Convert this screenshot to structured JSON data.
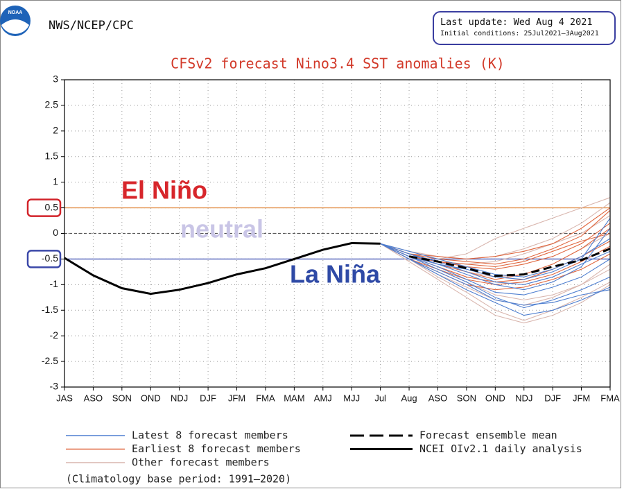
{
  "header": {
    "logo_text": "NOAA",
    "agency": "NWS/NCEP/CPC",
    "last_update": "Last update: Wed Aug 4 2021",
    "initial_conditions": "Initial conditions: 25Jul2021–3Aug2021"
  },
  "chart_data": {
    "type": "line",
    "title": "CFSv2 forecast Nino3.4 SST anomalies (K)",
    "categories": [
      "JAS",
      "ASO",
      "SON",
      "OND",
      "NDJ",
      "DJF",
      "JFM",
      "FMA",
      "MAM",
      "AMJ",
      "MJJ",
      "Jul",
      "Aug",
      "ASO",
      "SON",
      "OND",
      "NDJ",
      "DJF",
      "JFM",
      "FMA"
    ],
    "ylim": [
      -3,
      3
    ],
    "yticks": [
      -3,
      -2.5,
      -2,
      -1.5,
      -1,
      -0.5,
      0,
      0.5,
      1,
      1.5,
      2,
      2.5,
      3
    ],
    "grid": true,
    "thresholds": [
      {
        "value": 0.5,
        "color": "#e59a5b",
        "box": "#d2232a"
      },
      {
        "value": 0,
        "color": "#555555",
        "dash": true
      },
      {
        "value": -0.5,
        "color": "#4b5cb8",
        "box": "#3a47a8"
      }
    ],
    "annotations": [
      {
        "text": "El Niño",
        "color": "#d7262b"
      },
      {
        "text": "neutral",
        "color": "#c9c5e6"
      },
      {
        "text": "La Niña",
        "color": "#2f4aa6"
      }
    ],
    "member_groups": [
      {
        "name": "Latest 8 forecast members",
        "color": "#4f7fd0",
        "members": [
          [
            null,
            null,
            null,
            null,
            null,
            null,
            null,
            null,
            null,
            null,
            null,
            -0.2,
            -0.45,
            -0.7,
            -0.95,
            -1.25,
            -1.45,
            -1.3,
            -1.1,
            -0.85
          ],
          [
            null,
            null,
            null,
            null,
            null,
            null,
            null,
            null,
            null,
            null,
            null,
            -0.2,
            -0.5,
            -0.8,
            -1.1,
            -1.35,
            -1.6,
            -1.5,
            -1.3,
            -1.05
          ],
          [
            null,
            null,
            null,
            null,
            null,
            null,
            null,
            null,
            null,
            null,
            null,
            -0.2,
            -0.4,
            -0.55,
            -0.75,
            -0.95,
            -1.0,
            -0.85,
            -0.6,
            -0.35
          ],
          [
            null,
            null,
            null,
            null,
            null,
            null,
            null,
            null,
            null,
            null,
            null,
            -0.2,
            -0.45,
            -0.65,
            -0.9,
            -1.15,
            -1.2,
            -1.05,
            -0.85,
            -0.5
          ],
          [
            null,
            null,
            null,
            null,
            null,
            null,
            null,
            null,
            null,
            null,
            null,
            -0.2,
            -0.35,
            -0.5,
            -0.65,
            -0.8,
            -0.85,
            -0.7,
            -0.45,
            -0.1
          ],
          [
            null,
            null,
            null,
            null,
            null,
            null,
            null,
            null,
            null,
            null,
            null,
            -0.2,
            -0.4,
            -0.6,
            -0.8,
            -1.0,
            -1.1,
            -0.95,
            -0.65,
            0.1
          ],
          [
            null,
            null,
            null,
            null,
            null,
            null,
            null,
            null,
            null,
            null,
            null,
            -0.2,
            -0.5,
            -0.75,
            -1.0,
            -1.3,
            -1.4,
            -1.35,
            -1.2,
            -1.1
          ],
          [
            null,
            null,
            null,
            null,
            null,
            null,
            null,
            null,
            null,
            null,
            null,
            -0.2,
            -0.45,
            -0.6,
            -0.7,
            -0.85,
            -0.9,
            -0.75,
            -0.5,
            0.3
          ]
        ]
      },
      {
        "name": "Earliest 8 forecast members",
        "color": "#e0673f",
        "members": [
          [
            null,
            null,
            null,
            null,
            null,
            null,
            null,
            null,
            null,
            null,
            null,
            -0.2,
            -0.4,
            -0.5,
            -0.55,
            -0.6,
            -0.5,
            -0.3,
            -0.05,
            0.45
          ],
          [
            null,
            null,
            null,
            null,
            null,
            null,
            null,
            null,
            null,
            null,
            null,
            -0.2,
            -0.45,
            -0.6,
            -0.75,
            -0.9,
            -0.8,
            -0.6,
            -0.3,
            0.1
          ],
          [
            null,
            null,
            null,
            null,
            null,
            null,
            null,
            null,
            null,
            null,
            null,
            -0.2,
            -0.4,
            -0.45,
            -0.5,
            -0.45,
            -0.35,
            -0.2,
            0.1,
            0.5
          ],
          [
            null,
            null,
            null,
            null,
            null,
            null,
            null,
            null,
            null,
            null,
            null,
            -0.2,
            -0.5,
            -0.7,
            -0.9,
            -1.0,
            -0.95,
            -0.8,
            -0.55,
            -0.25
          ],
          [
            null,
            null,
            null,
            null,
            null,
            null,
            null,
            null,
            null,
            null,
            null,
            -0.2,
            -0.45,
            -0.55,
            -0.65,
            -0.7,
            -0.6,
            -0.45,
            -0.2,
            0.2
          ],
          [
            null,
            null,
            null,
            null,
            null,
            null,
            null,
            null,
            null,
            null,
            null,
            -0.2,
            -0.5,
            -0.75,
            -1.0,
            -1.1,
            -1.05,
            -0.9,
            -0.7,
            -0.4
          ],
          [
            null,
            null,
            null,
            null,
            null,
            null,
            null,
            null,
            null,
            null,
            null,
            -0.2,
            -0.4,
            -0.55,
            -0.6,
            -0.65,
            -0.55,
            -0.35,
            -0.15,
            0.0
          ],
          [
            null,
            null,
            null,
            null,
            null,
            null,
            null,
            null,
            null,
            null,
            null,
            -0.2,
            -0.45,
            -0.65,
            -0.85,
            -0.95,
            -0.9,
            -0.7,
            -0.45,
            -0.15
          ]
        ]
      },
      {
        "name": "Other forecast members",
        "color": "#d9b6ae",
        "members": [
          [
            null,
            null,
            null,
            null,
            null,
            null,
            null,
            null,
            null,
            null,
            null,
            -0.2,
            -0.4,
            -0.5,
            -0.4,
            -0.1,
            0.1,
            0.3,
            0.5,
            0.7
          ],
          [
            null,
            null,
            null,
            null,
            null,
            null,
            null,
            null,
            null,
            null,
            null,
            -0.2,
            -0.55,
            -0.9,
            -1.25,
            -1.6,
            -1.75,
            -1.6,
            -1.35,
            -1.0
          ],
          [
            null,
            null,
            null,
            null,
            null,
            null,
            null,
            null,
            null,
            null,
            null,
            -0.2,
            -0.5,
            -0.85,
            -1.15,
            -1.5,
            -1.7,
            -1.5,
            -1.25,
            -0.95
          ],
          [
            null,
            null,
            null,
            null,
            null,
            null,
            null,
            null,
            null,
            null,
            null,
            -0.2,
            -0.35,
            -0.45,
            -0.5,
            -0.45,
            -0.3,
            -0.1,
            0.2,
            0.6
          ],
          [
            null,
            null,
            null,
            null,
            null,
            null,
            null,
            null,
            null,
            null,
            null,
            -0.2,
            -0.45,
            -0.7,
            -0.95,
            -1.2,
            -1.3,
            -1.2,
            -1.0,
            -0.7
          ],
          [
            null,
            null,
            null,
            null,
            null,
            null,
            null,
            null,
            null,
            null,
            null,
            -0.2,
            -0.4,
            -0.6,
            -0.75,
            -0.85,
            -0.8,
            -0.6,
            -0.3,
            0.0
          ],
          [
            null,
            null,
            null,
            null,
            null,
            null,
            null,
            null,
            null,
            null,
            null,
            -0.2,
            -0.5,
            -0.8,
            -1.05,
            -1.3,
            -1.4,
            -1.25,
            -1.0,
            -0.6
          ],
          [
            null,
            null,
            null,
            null,
            null,
            null,
            null,
            null,
            null,
            null,
            null,
            -0.2,
            -0.45,
            -0.55,
            -0.6,
            -0.55,
            -0.4,
            -0.2,
            0.0,
            0.35
          ]
        ]
      }
    ],
    "series": [
      {
        "name": "Forecast ensemble mean",
        "color": "#000000",
        "dash": true,
        "values": [
          null,
          null,
          null,
          null,
          null,
          null,
          null,
          null,
          null,
          null,
          null,
          null,
          -0.45,
          -0.55,
          -0.68,
          -0.83,
          -0.8,
          -0.65,
          -0.52,
          -0.3
        ]
      },
      {
        "name": "NCEI OIv2.1 daily analysis",
        "color": "#000000",
        "dash": false,
        "values": [
          -0.48,
          -0.82,
          -1.07,
          -1.18,
          -1.1,
          -0.97,
          -0.8,
          -0.68,
          -0.5,
          -0.32,
          -0.19,
          -0.2,
          null,
          null,
          null,
          null,
          null,
          null,
          null,
          null
        ]
      }
    ],
    "note": "(Climatology base period: 1991–2020)"
  }
}
